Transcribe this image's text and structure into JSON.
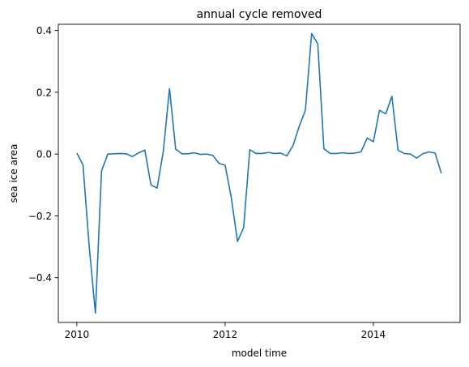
{
  "chart_data": {
    "type": "line",
    "title": "annual cycle removed",
    "xlabel": "model time",
    "ylabel": "sea ice area",
    "xlim": [
      2009.75,
      2015.17
    ],
    "ylim": [
      -0.545,
      0.42
    ],
    "xticks": [
      2010,
      2012,
      2014
    ],
    "xtick_labels": [
      "2010",
      "2012",
      "2014"
    ],
    "yticks": [
      -0.4,
      -0.2,
      0.0,
      0.2,
      0.4
    ],
    "ytick_labels": [
      "−0.4",
      "−0.2",
      "0.0",
      "0.2",
      "0.4"
    ],
    "grid": false,
    "series": [
      {
        "color": "#1f77b4",
        "x": [
          2010.0,
          2010.083,
          2010.167,
          2010.25,
          2010.333,
          2010.417,
          2010.5,
          2010.583,
          2010.667,
          2010.75,
          2010.833,
          2010.917,
          2011.0,
          2011.083,
          2011.167,
          2011.25,
          2011.333,
          2011.417,
          2011.5,
          2011.583,
          2011.667,
          2011.75,
          2011.833,
          2011.917,
          2012.0,
          2012.083,
          2012.167,
          2012.25,
          2012.333,
          2012.417,
          2012.5,
          2012.583,
          2012.667,
          2012.75,
          2012.833,
          2012.917,
          2013.0,
          2013.083,
          2013.167,
          2013.25,
          2013.333,
          2013.417,
          2013.5,
          2013.583,
          2013.667,
          2013.75,
          2013.833,
          2013.917,
          2014.0,
          2014.083,
          2014.167,
          2014.25,
          2014.333,
          2014.417,
          2014.5,
          2014.583,
          2014.667,
          2014.75,
          2014.833,
          2014.917
        ],
        "y": [
          0.003,
          -0.035,
          -0.3,
          -0.515,
          -0.055,
          0.0,
          0.001,
          0.002,
          0.001,
          -0.008,
          0.004,
          0.013,
          -0.1,
          -0.11,
          0.01,
          0.212,
          0.016,
          0.001,
          0.001,
          0.004,
          -0.001,
          0.0,
          -0.004,
          -0.03,
          -0.036,
          -0.14,
          -0.283,
          -0.238,
          0.014,
          0.002,
          0.002,
          0.005,
          0.002,
          0.003,
          -0.006,
          0.028,
          0.09,
          0.142,
          0.39,
          0.357,
          0.017,
          0.002,
          0.002,
          0.004,
          0.002,
          0.003,
          0.007,
          0.052,
          0.04,
          0.142,
          0.13,
          0.187,
          0.012,
          0.002,
          0.0,
          -0.013,
          0.001,
          0.007,
          0.003,
          -0.062
        ]
      }
    ]
  }
}
